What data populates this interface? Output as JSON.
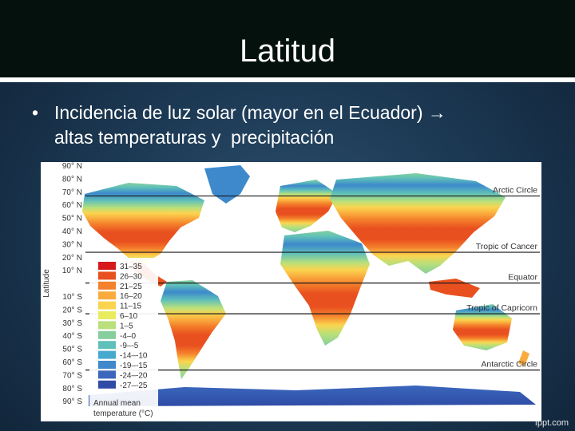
{
  "slide": {
    "title": "Latitud",
    "bullet_lines": [
      "Incidencia de luz solar (mayor en el Ecuador) →",
      "altas temperaturas y  precipitación"
    ],
    "footer": "fppt.com"
  },
  "map": {
    "axis_label": "Latitude",
    "latitude_ticks": [
      "90° N",
      "80° N",
      "70° N",
      "60° N",
      "50° N",
      "40° N",
      "30° N",
      "20° N",
      "10° N",
      "10° S",
      "20° S",
      "30° S",
      "40° S",
      "50° S",
      "60° S",
      "70° S",
      "80° S",
      "90° S"
    ],
    "reference_lines": [
      {
        "label": "Arctic Circle",
        "lat": 66.5
      },
      {
        "label": "Tropic of Cancer",
        "lat": 23.5
      },
      {
        "label": "Equator",
        "lat": 0
      },
      {
        "label": "Tropic of Capricorn",
        "lat": -23.5
      },
      {
        "label": "Antarctic Circle",
        "lat": -66.5
      }
    ],
    "legend": {
      "title_lines": [
        "Annual mean",
        "temperature (°C)"
      ],
      "items": [
        {
          "label": "31–35",
          "color": "#d7191c"
        },
        {
          "label": "26–30",
          "color": "#e9501f"
        },
        {
          "label": "21–25",
          "color": "#f4812b"
        },
        {
          "label": "16–20",
          "color": "#f9ac3d"
        },
        {
          "label": "11–15",
          "color": "#fbd44f"
        },
        {
          "label": "6–10",
          "color": "#e8ec5e"
        },
        {
          "label": "1–5",
          "color": "#b9e07a"
        },
        {
          "label": "-4–0",
          "color": "#86cf9c"
        },
        {
          "label": "-9–-5",
          "color": "#5fc0b9"
        },
        {
          "label": "-14–-10",
          "color": "#48a9cf"
        },
        {
          "label": "-19–-15",
          "color": "#3d89cc"
        },
        {
          "label": "-24–-20",
          "color": "#3b67bd"
        },
        {
          "label": "-27–-25",
          "color": "#2f4ba5"
        }
      ]
    }
  }
}
